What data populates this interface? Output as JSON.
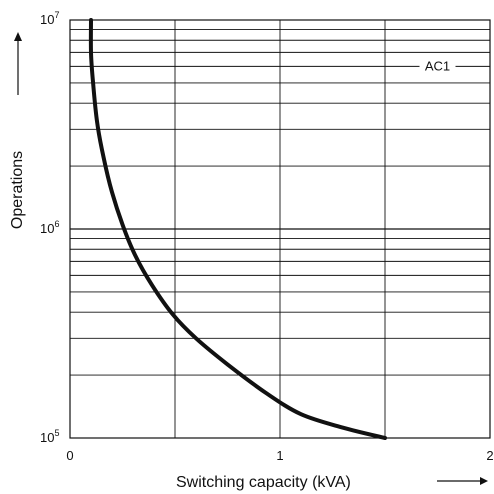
{
  "chart_data": {
    "type": "line",
    "title": "",
    "xlabel": "Switching capacity (kVA)",
    "ylabel": "Operations",
    "xlim": [
      0,
      2
    ],
    "ylim": [
      100000,
      10000000
    ],
    "y_scale": "log",
    "grid": true,
    "x_ticks": [
      {
        "value": 0,
        "label": "0"
      },
      {
        "value": 1,
        "label": "1"
      },
      {
        "value": 2,
        "label": "2"
      }
    ],
    "y_ticks": [
      {
        "value": 100000,
        "base": "10",
        "exp": "5"
      },
      {
        "value": 1000000,
        "base": "10",
        "exp": "6"
      },
      {
        "value": 10000000,
        "base": "10",
        "exp": "7"
      }
    ],
    "annotations": [
      {
        "text": "AC1",
        "x": 1.75,
        "y": 6000000
      }
    ],
    "series": [
      {
        "x": [
          0.1,
          0.1,
          0.11,
          0.13,
          0.16,
          0.2,
          0.25,
          0.31,
          0.39,
          0.49,
          0.6,
          0.75,
          0.93,
          1.1,
          1.3,
          1.5
        ],
        "y": [
          10000000,
          7000000,
          5000000,
          3200000,
          2200000,
          1500000,
          1050000,
          750000,
          540000,
          390000,
          300000,
          225000,
          165000,
          130000,
          112000,
          100000
        ]
      }
    ]
  }
}
